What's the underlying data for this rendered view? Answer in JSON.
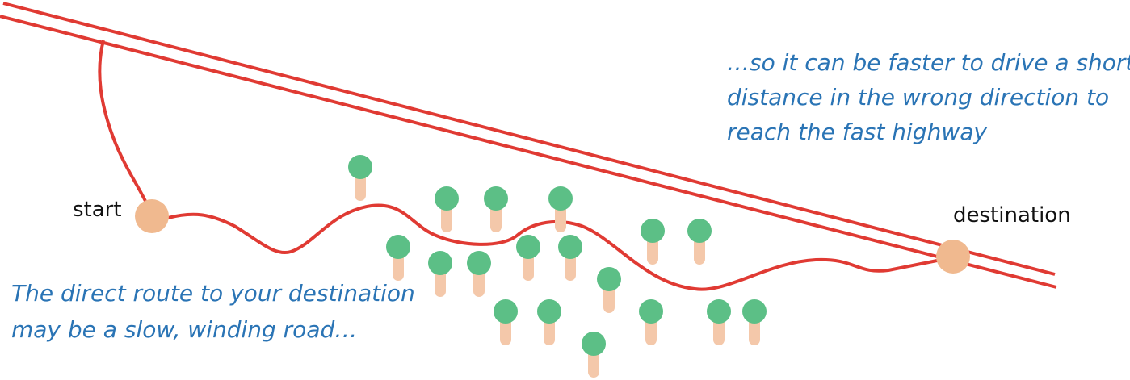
{
  "labels": {
    "start": "start",
    "destination": "destination"
  },
  "captions": [
    {
      "lines": [
        "The direct route to your destination",
        "may be a slow, winding road…"
      ]
    },
    {
      "lines": [
        "…so it can be faster to drive a short",
        "distance in the wrong direction to",
        "reach the fast highway"
      ]
    }
  ]
}
